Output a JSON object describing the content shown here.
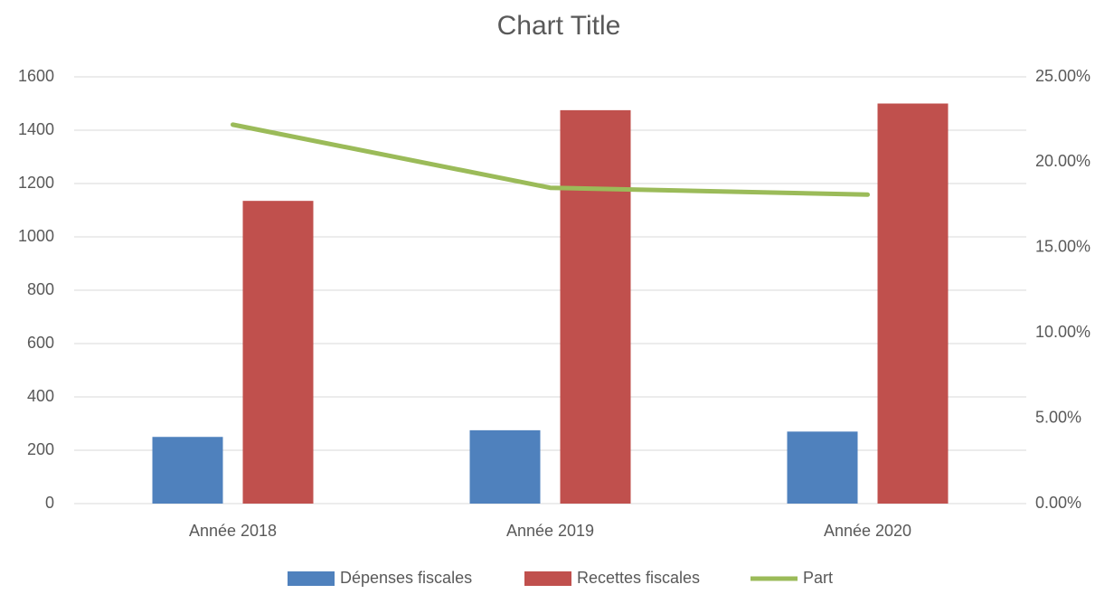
{
  "chart_data": {
    "type": "bar-line",
    "title": "Chart Title",
    "categories": [
      "Année 2018",
      "Année 2019",
      "Année 2020"
    ],
    "series": [
      {
        "name": "Dépenses fiscales",
        "type": "bar",
        "color": "#4f81bd",
        "values": [
          250,
          275,
          270
        ]
      },
      {
        "name": "Recettes fiscales",
        "type": "bar",
        "color": "#c0504d",
        "values": [
          1135,
          1475,
          1500
        ]
      },
      {
        "name": "Part",
        "type": "line",
        "axis": "y2",
        "color": "#9bbb59",
        "values": [
          22.2,
          18.5,
          18.1
        ]
      }
    ],
    "ylim": [
      0,
      1600
    ],
    "yticks": [
      0,
      200,
      400,
      600,
      800,
      1000,
      1200,
      1400,
      1600
    ],
    "y2lim": [
      0,
      25
    ],
    "y2ticks": [
      {
        "value": 0,
        "label": "0.00%"
      },
      {
        "value": 5,
        "label": "5.00%"
      },
      {
        "value": 10,
        "label": "10.00%"
      },
      {
        "value": 15,
        "label": "15.00%"
      },
      {
        "value": 20,
        "label": "20.00%"
      },
      {
        "value": 25,
        "label": "25.00%"
      }
    ],
    "grid": true,
    "legend": "bottom"
  }
}
